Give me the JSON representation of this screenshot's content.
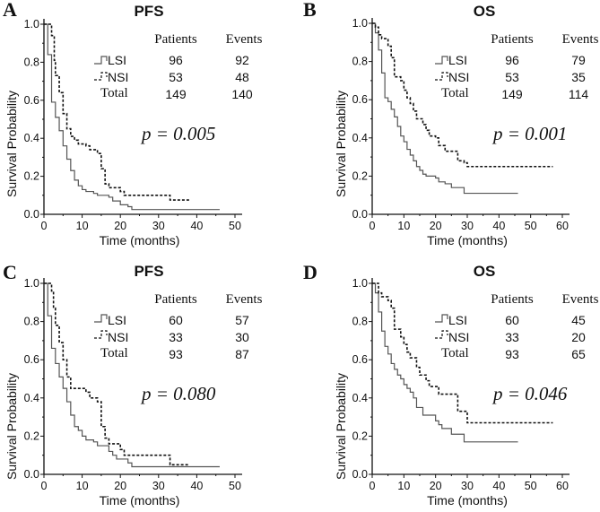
{
  "chart_data": [
    {
      "type": "line",
      "panel": "A",
      "title": "PFS",
      "xlabel": "Time (months)",
      "ylabel": "Survival Probability",
      "xlim": [
        0,
        50
      ],
      "ylim": [
        0,
        1
      ],
      "xticks": [
        "0",
        "10",
        "20",
        "30",
        "40",
        "50"
      ],
      "yticks": [
        "0.0",
        "0.2",
        "0.4",
        "0.6",
        "0.8",
        "1.0"
      ],
      "table": {
        "headers": [
          "Patients",
          "Events"
        ],
        "rows": [
          {
            "label": "LSI",
            "patients": "96",
            "events": "92"
          },
          {
            "label": "NSI",
            "patients": "53",
            "events": "48"
          },
          {
            "label": "Total",
            "patients": "149",
            "events": "140"
          }
        ]
      },
      "p_value": "p = 0.005",
      "series": [
        {
          "name": "LSI",
          "style": "solid",
          "end": 46,
          "steps": [
            [
              0,
              1
            ],
            [
              1,
              0.84
            ],
            [
              2,
              0.59
            ],
            [
              3,
              0.51
            ],
            [
              4,
              0.44
            ],
            [
              5,
              0.36
            ],
            [
              6,
              0.29
            ],
            [
              7,
              0.23
            ],
            [
              8,
              0.18
            ],
            [
              9,
              0.15
            ],
            [
              10,
              0.13
            ],
            [
              11,
              0.12
            ],
            [
              13,
              0.11
            ],
            [
              14,
              0.1
            ],
            [
              17,
              0.09
            ],
            [
              18,
              0.07
            ],
            [
              20,
              0.05
            ],
            [
              22,
              0.04
            ],
            [
              23,
              0.025
            ]
          ]
        },
        {
          "name": "NSI",
          "style": "dashed",
          "end": 38,
          "steps": [
            [
              0,
              1
            ],
            [
              2,
              0.94
            ],
            [
              2.7,
              0.81
            ],
            [
              3,
              0.73
            ],
            [
              4,
              0.64
            ],
            [
              5,
              0.53
            ],
            [
              6,
              0.45
            ],
            [
              7,
              0.41
            ],
            [
              8,
              0.39
            ],
            [
              9,
              0.37
            ],
            [
              11,
              0.36
            ],
            [
              12,
              0.34
            ],
            [
              14,
              0.32
            ],
            [
              15,
              0.24
            ],
            [
              16,
              0.16
            ],
            [
              17,
              0.14
            ],
            [
              20,
              0.12
            ],
            [
              21,
              0.1
            ],
            [
              33,
              0.075
            ]
          ]
        }
      ]
    },
    {
      "type": "line",
      "panel": "B",
      "title": "OS",
      "xlabel": "Time (months)",
      "ylabel": "Survival Probability",
      "xlim": [
        0,
        60
      ],
      "ylim": [
        0,
        1
      ],
      "xticks": [
        "0",
        "10",
        "20",
        "30",
        "40",
        "50",
        "60"
      ],
      "yticks": [
        "0.0",
        "0.2",
        "0.4",
        "0.6",
        "0.8",
        "1.0"
      ],
      "table": {
        "headers": [
          "Patients",
          "Events"
        ],
        "rows": [
          {
            "label": "LSI",
            "patients": "96",
            "events": "79"
          },
          {
            "label": "NSI",
            "patients": "53",
            "events": "35"
          },
          {
            "label": "Total",
            "patients": "149",
            "events": "114"
          }
        ]
      },
      "p_value": "p = 0.001",
      "series": [
        {
          "name": "LSI",
          "style": "solid",
          "end": 46,
          "steps": [
            [
              0,
              1
            ],
            [
              1,
              0.95
            ],
            [
              2,
              0.86
            ],
            [
              3,
              0.74
            ],
            [
              4,
              0.61
            ],
            [
              5,
              0.59
            ],
            [
              6,
              0.55
            ],
            [
              7,
              0.51
            ],
            [
              8,
              0.46
            ],
            [
              9,
              0.41
            ],
            [
              10,
              0.38
            ],
            [
              11,
              0.34
            ],
            [
              12,
              0.31
            ],
            [
              13,
              0.28
            ],
            [
              14,
              0.25
            ],
            [
              15,
              0.23
            ],
            [
              16,
              0.21
            ],
            [
              17,
              0.2
            ],
            [
              20,
              0.19
            ],
            [
              21,
              0.17
            ],
            [
              23,
              0.16
            ],
            [
              25,
              0.14
            ],
            [
              29,
              0.11
            ]
          ]
        },
        {
          "name": "NSI",
          "style": "dashed",
          "end": 57,
          "steps": [
            [
              0,
              1
            ],
            [
              1,
              0.98
            ],
            [
              2,
              0.94
            ],
            [
              3,
              0.92
            ],
            [
              5,
              0.88
            ],
            [
              6,
              0.82
            ],
            [
              7,
              0.72
            ],
            [
              9,
              0.7
            ],
            [
              10,
              0.65
            ],
            [
              11,
              0.61
            ],
            [
              12,
              0.58
            ],
            [
              13,
              0.54
            ],
            [
              14,
              0.5
            ],
            [
              16,
              0.47
            ],
            [
              17,
              0.44
            ],
            [
              18,
              0.41
            ],
            [
              20,
              0.4
            ],
            [
              21,
              0.36
            ],
            [
              23,
              0.33
            ],
            [
              27,
              0.28
            ],
            [
              29,
              0.27
            ],
            [
              30,
              0.25
            ]
          ]
        }
      ]
    },
    {
      "type": "line",
      "panel": "C",
      "title": "PFS",
      "xlabel": "Time (months)",
      "ylabel": "Survival Probability",
      "xlim": [
        0,
        50
      ],
      "ylim": [
        0,
        1
      ],
      "xticks": [
        "0",
        "10",
        "20",
        "30",
        "40",
        "50"
      ],
      "yticks": [
        "0.0",
        "0.2",
        "0.4",
        "0.6",
        "0.8",
        "1.0"
      ],
      "table": {
        "headers": [
          "Patients",
          "Events"
        ],
        "rows": [
          {
            "label": "LSI",
            "patients": "60",
            "events": "57"
          },
          {
            "label": "NSI",
            "patients": "33",
            "events": "30"
          },
          {
            "label": "Total",
            "patients": "93",
            "events": "87"
          }
        ]
      },
      "p_value": "p = 0.080",
      "series": [
        {
          "name": "LSI",
          "style": "solid",
          "end": 46,
          "steps": [
            [
              0,
              1
            ],
            [
              1,
              0.83
            ],
            [
              2,
              0.66
            ],
            [
              3,
              0.58
            ],
            [
              4,
              0.51
            ],
            [
              5,
              0.45
            ],
            [
              6,
              0.38
            ],
            [
              7,
              0.31
            ],
            [
              8,
              0.25
            ],
            [
              9,
              0.23
            ],
            [
              10,
              0.2
            ],
            [
              11,
              0.18
            ],
            [
              13,
              0.17
            ],
            [
              14,
              0.15
            ],
            [
              17,
              0.12
            ],
            [
              18,
              0.1
            ],
            [
              19,
              0.08
            ],
            [
              22,
              0.06
            ],
            [
              23,
              0.04
            ]
          ]
        },
        {
          "name": "NSI",
          "style": "dashed",
          "end": 38,
          "steps": [
            [
              0,
              1
            ],
            [
              2,
              0.96
            ],
            [
              2.5,
              0.87
            ],
            [
              3,
              0.78
            ],
            [
              4,
              0.69
            ],
            [
              5,
              0.6
            ],
            [
              6,
              0.51
            ],
            [
              7,
              0.45
            ],
            [
              11,
              0.43
            ],
            [
              12,
              0.4
            ],
            [
              14,
              0.38
            ],
            [
              15,
              0.25
            ],
            [
              16,
              0.19
            ],
            [
              17,
              0.16
            ],
            [
              20,
              0.13
            ],
            [
              21,
              0.1
            ],
            [
              33,
              0.05
            ]
          ]
        }
      ]
    },
    {
      "type": "line",
      "panel": "D",
      "title": "OS",
      "xlabel": "Time (months)",
      "ylabel": "Survival Probability",
      "xlim": [
        0,
        60
      ],
      "ylim": [
        0,
        1
      ],
      "xticks": [
        "0",
        "10",
        "20",
        "30",
        "40",
        "50",
        "60"
      ],
      "yticks": [
        "0.0",
        "0.2",
        "0.4",
        "0.6",
        "0.8",
        "1.0"
      ],
      "table": {
        "headers": [
          "Patients",
          "Events"
        ],
        "rows": [
          {
            "label": "LSI",
            "patients": "60",
            "events": "45"
          },
          {
            "label": "NSI",
            "patients": "33",
            "events": "20"
          },
          {
            "label": "Total",
            "patients": "93",
            "events": "65"
          }
        ]
      },
      "p_value": "p = 0.046",
      "series": [
        {
          "name": "LSI",
          "style": "solid",
          "end": 46,
          "steps": [
            [
              0,
              1
            ],
            [
              1,
              0.95
            ],
            [
              2,
              0.85
            ],
            [
              3,
              0.75
            ],
            [
              4,
              0.67
            ],
            [
              5,
              0.63
            ],
            [
              6,
              0.58
            ],
            [
              7,
              0.55
            ],
            [
              8,
              0.52
            ],
            [
              9,
              0.5
            ],
            [
              10,
              0.47
            ],
            [
              11,
              0.45
            ],
            [
              12,
              0.43
            ],
            [
              13,
              0.4
            ],
            [
              14,
              0.35
            ],
            [
              16,
              0.31
            ],
            [
              20,
              0.28
            ],
            [
              21,
              0.26
            ],
            [
              22,
              0.24
            ],
            [
              25,
              0.21
            ],
            [
              29,
              0.17
            ]
          ]
        },
        {
          "name": "NSI",
          "style": "dashed",
          "end": 57,
          "steps": [
            [
              0,
              1
            ],
            [
              2,
              0.95
            ],
            [
              3,
              0.93
            ],
            [
              5,
              0.91
            ],
            [
              6,
              0.87
            ],
            [
              7,
              0.76
            ],
            [
              9,
              0.72
            ],
            [
              10,
              0.68
            ],
            [
              11,
              0.64
            ],
            [
              12,
              0.61
            ],
            [
              14,
              0.56
            ],
            [
              15,
              0.52
            ],
            [
              17,
              0.49
            ],
            [
              18,
              0.46
            ],
            [
              21,
              0.42
            ],
            [
              27,
              0.33
            ],
            [
              30,
              0.27
            ]
          ]
        }
      ]
    }
  ]
}
